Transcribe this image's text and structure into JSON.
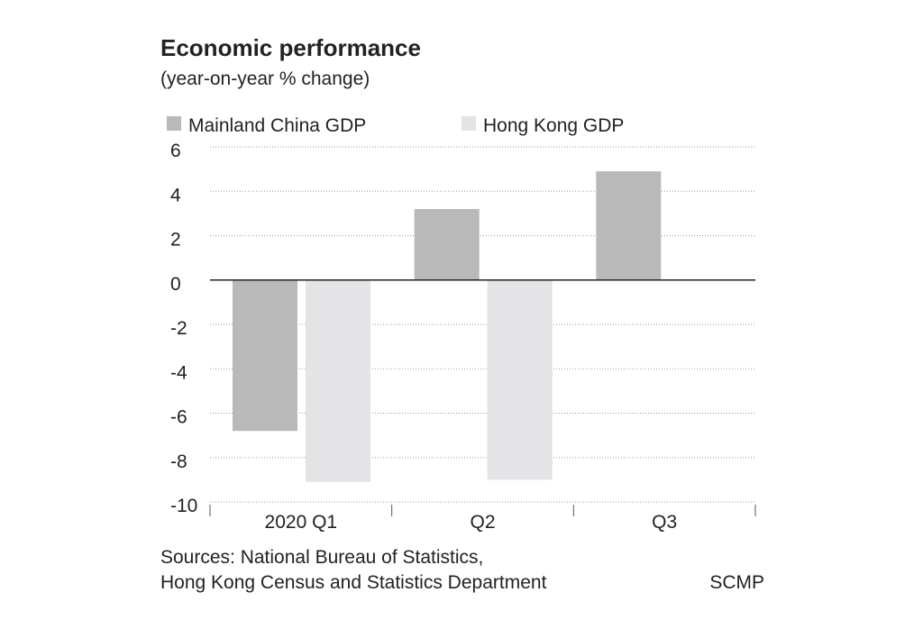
{
  "chart_data": {
    "type": "bar",
    "title": "Economic performance",
    "subtitle": "(year-on-year % change)",
    "categories": [
      "2020 Q1",
      "Q2",
      "Q3"
    ],
    "series": [
      {
        "name": "Mainland China GDP",
        "color": "#b9b9b9",
        "values": [
          -6.8,
          3.2,
          4.9
        ]
      },
      {
        "name": "Hong Kong GDP",
        "color": "#e4e4e6",
        "values": [
          -9.1,
          -9.0,
          null
        ]
      }
    ],
    "ylim": [
      -10,
      6
    ],
    "yticks": [
      -10,
      -8,
      -6,
      -4,
      -2,
      0,
      2,
      4,
      6
    ],
    "grid": true,
    "source": [
      "Sources: National Bureau of Statistics,",
      "Hong Kong Census and Statistics Department"
    ],
    "credit": "SCMP"
  }
}
